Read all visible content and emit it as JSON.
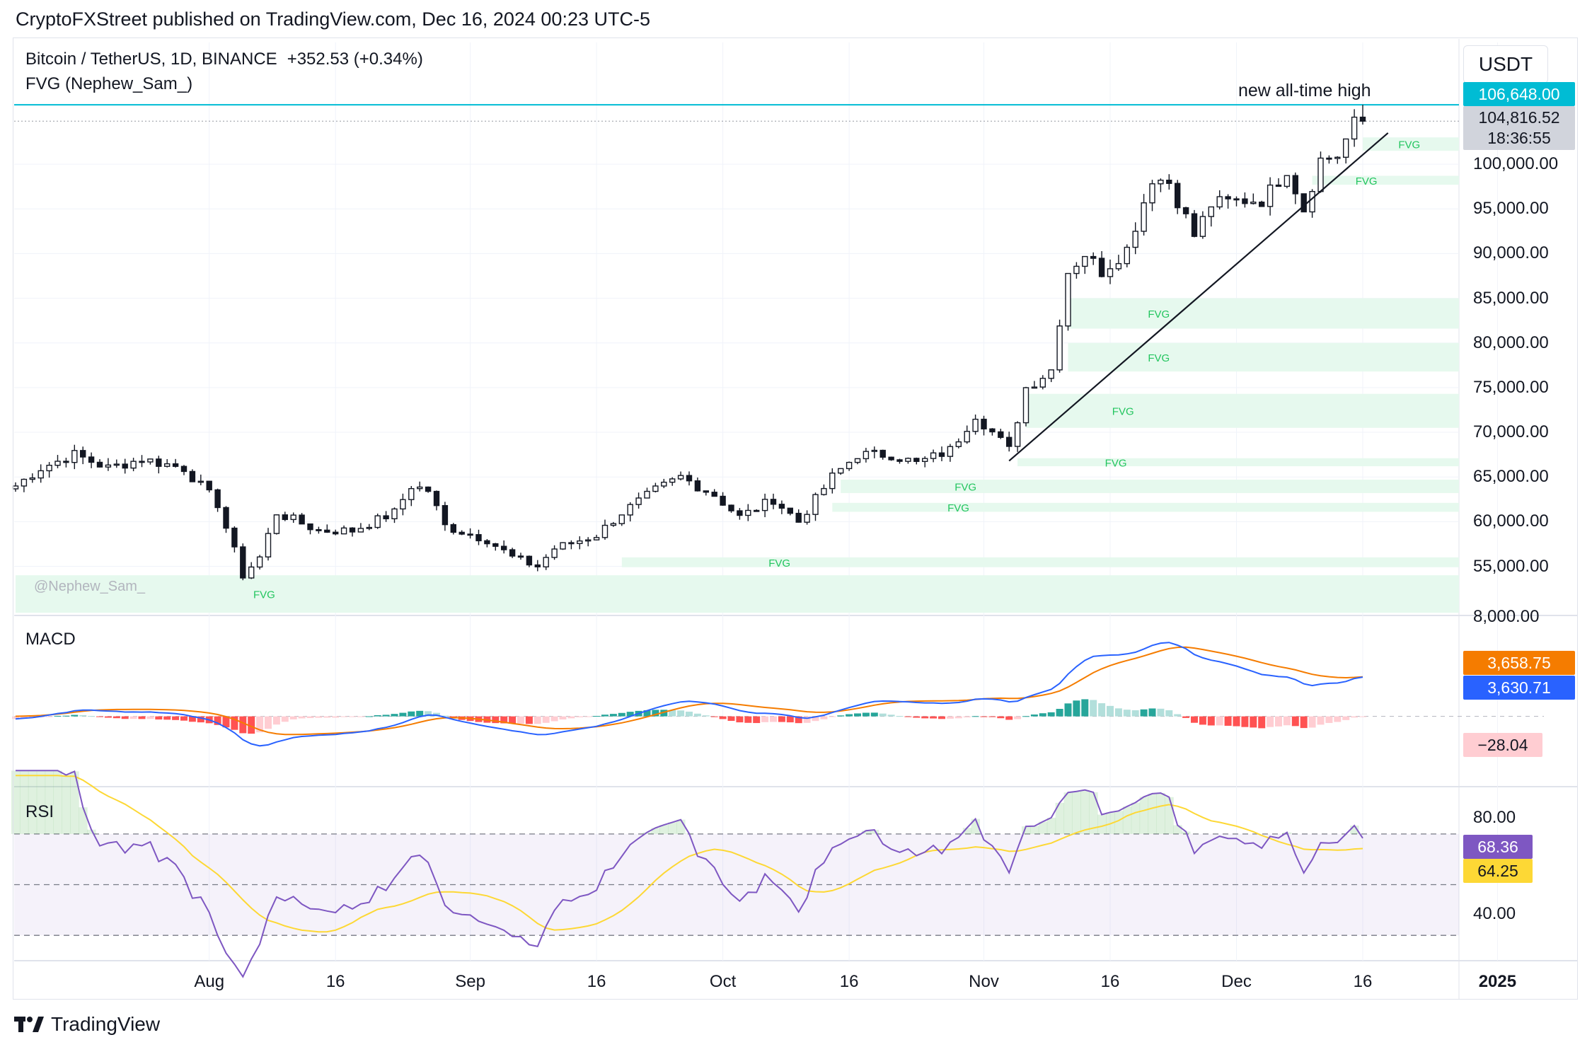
{
  "header": {
    "published": "CryptoFXStreet published on TradingView.com, Dec 16, 2024 00:23 UTC-5"
  },
  "legend": {
    "symbol": "Bitcoin / TetherUS, 1D, BINANCE",
    "change": "+352.53 (+0.34%)",
    "indicator": "FVG (Nephew_Sam_)",
    "watermark": "@Nephew_Sam_"
  },
  "currency_button": "USDT",
  "annotation": "new all-time high",
  "price_tags": {
    "ath": "106,648.00",
    "last": "104,816.52",
    "countdown": "18:36:55",
    "macd_signal": "3,658.75",
    "macd_line": "3,630.71",
    "macd_hist": "−28.04",
    "rsi_value": "68.36",
    "rsi_ma": "64.25"
  },
  "colors": {
    "accent_cyan": "#00bcd4",
    "fvg_fill": "#e6f9ee",
    "fvg_text": "#22c55e",
    "macd_line": "#2962ff",
    "signal_line": "#f57c00",
    "hist_pos_strong": "#26a69a",
    "hist_pos_weak": "#b2dfdb",
    "hist_neg_strong": "#ff5252",
    "hist_neg_weak": "#ffcdd2",
    "rsi_line": "#7e57c2",
    "rsi_ma": "#fdd835"
  },
  "macd_pane": {
    "title": "MACD",
    "axis_label": "8,000.00"
  },
  "rsi_pane": {
    "title": "RSI",
    "axis_labels": [
      "80.00",
      "40.00"
    ]
  },
  "brand": "TradingView",
  "chart_data": {
    "type": "candlestick",
    "timeframe": "1D",
    "x_ticks": [
      "Aug",
      "16",
      "Sep",
      "16",
      "Oct",
      "16",
      "Nov",
      "16",
      "Dec",
      "16",
      "2025"
    ],
    "y_ticks": [
      100000,
      95000,
      90000,
      85000,
      80000,
      75000,
      70000,
      65000,
      60000,
      55000
    ],
    "y_tick_labels": [
      "100,000.00",
      "95,000.00",
      "90,000.00",
      "85,000.00",
      "80,000.00",
      "75,000.00",
      "70,000.00",
      "65,000.00",
      "60,000.00",
      "55,000.00"
    ],
    "ylim": [
      49500,
      106500
    ],
    "start_date": "2024-07-09",
    "anchors": [
      [
        "2024-07-09",
        64000
      ],
      [
        "2024-07-12",
        66000
      ],
      [
        "2024-07-16",
        67500
      ],
      [
        "2024-07-20",
        66000
      ],
      [
        "2024-07-24",
        67000
      ],
      [
        "2024-07-29",
        66000
      ],
      [
        "2024-08-02",
        62000
      ],
      [
        "2024-08-05",
        54000
      ],
      [
        "2024-08-07",
        56000
      ],
      [
        "2024-08-09",
        61000
      ],
      [
        "2024-08-14",
        59000
      ],
      [
        "2024-08-18",
        59000
      ],
      [
        "2024-08-23",
        61000
      ],
      [
        "2024-08-25",
        64000
      ],
      [
        "2024-08-27",
        63500
      ],
      [
        "2024-08-29",
        59500
      ],
      [
        "2024-09-03",
        58000
      ],
      [
        "2024-09-06",
        56000
      ],
      [
        "2024-09-09",
        55000
      ],
      [
        "2024-09-11",
        57000
      ],
      [
        "2024-09-16",
        58500
      ],
      [
        "2024-09-19",
        61000
      ],
      [
        "2024-09-23",
        63500
      ],
      [
        "2024-09-26",
        65000
      ],
      [
        "2024-09-30",
        63000
      ],
      [
        "2024-10-03",
        60500
      ],
      [
        "2024-10-07",
        62500
      ],
      [
        "2024-10-10",
        60000
      ],
      [
        "2024-10-14",
        65000
      ],
      [
        "2024-10-17",
        67500
      ],
      [
        "2024-10-21",
        67500
      ],
      [
        "2024-10-24",
        66500
      ],
      [
        "2024-10-28",
        68000
      ],
      [
        "2024-10-31",
        72000
      ],
      [
        "2024-11-04",
        68000
      ],
      [
        "2024-11-06",
        75000
      ],
      [
        "2024-11-09",
        77000
      ],
      [
        "2024-11-11",
        88000
      ],
      [
        "2024-11-13",
        90000
      ],
      [
        "2024-11-15",
        88000
      ],
      [
        "2024-11-18",
        90500
      ],
      [
        "2024-11-21",
        98500
      ],
      [
        "2024-11-23",
        98000
      ],
      [
        "2024-11-26",
        92000
      ],
      [
        "2024-11-28",
        95500
      ],
      [
        "2024-12-02",
        96000
      ],
      [
        "2024-12-04",
        96000
      ],
      [
        "2024-12-05",
        97000
      ],
      [
        "2024-12-07",
        99500
      ],
      [
        "2024-12-09",
        95000
      ],
      [
        "2024-12-11",
        100500
      ],
      [
        "2024-12-13",
        101000
      ],
      [
        "2024-12-15",
        104500
      ],
      [
        "2024-12-16",
        104816.52
      ]
    ],
    "all_time_high": 106648.0,
    "last_price": 104816.52,
    "fvg_zones": [
      {
        "label": "FVG",
        "from": "2024-12-16",
        "low": 101500,
        "high": 103000
      },
      {
        "label": "FVG",
        "from": "2024-12-10",
        "low": 97700,
        "high": 98700
      },
      {
        "label": "FVG",
        "from": "2024-11-11",
        "low": 81600,
        "high": 85000
      },
      {
        "label": "FVG",
        "from": "2024-11-11",
        "low": 76800,
        "high": 80000
      },
      {
        "label": "FVG",
        "from": "2024-11-06",
        "low": 70500,
        "high": 74300
      },
      {
        "label": "FVG",
        "from": "2024-11-05",
        "low": 66200,
        "high": 67100
      },
      {
        "label": "FVG",
        "from": "2024-10-15",
        "low": 63200,
        "high": 64700
      },
      {
        "label": "FVG",
        "from": "2024-10-14",
        "low": 61100,
        "high": 62100
      },
      {
        "label": "FVG",
        "from": "2024-09-19",
        "low": 54900,
        "high": 56000
      },
      {
        "label": "FVG",
        "from": "2024-07-09",
        "low": 49800,
        "high": 54000
      }
    ],
    "trendline": [
      [
        "2024-11-04",
        66800
      ],
      [
        "2024-12-19",
        103500
      ]
    ],
    "macd": {
      "fast": 12,
      "slow": 26,
      "signal": 9,
      "last_macd": 3630.71,
      "last_signal": 3658.75,
      "last_hist": -28.04,
      "ylim": [
        -6500,
        9000
      ]
    },
    "rsi": {
      "length": 14,
      "ma_length": 14,
      "upper": 70,
      "middle": 50,
      "lower": 30,
      "ylim": [
        20,
        87
      ],
      "last_rsi": 68.36,
      "last_ma": 64.25
    }
  }
}
